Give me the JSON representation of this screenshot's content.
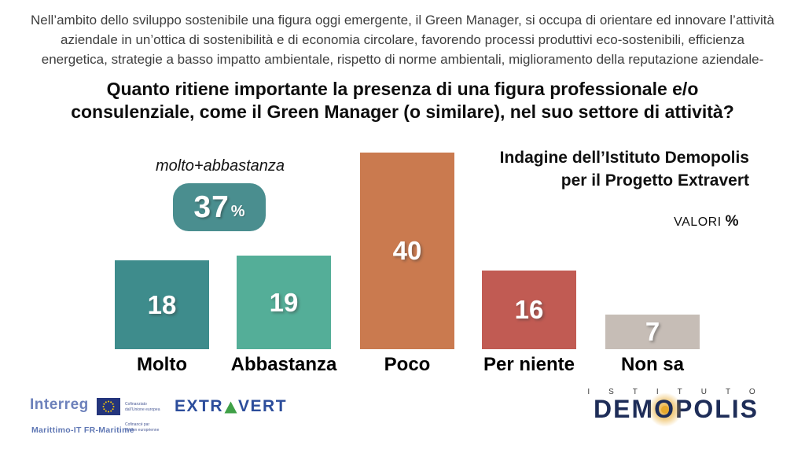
{
  "intro": {
    "lines": [
      "Nell’ambito dello sviluppo sostenibile una figura oggi emergente, il Green Manager, si occupa di orientare ed innovare l’attività",
      "aziendale in un’ottica di sostenibilità e di economia circolare, favorendo processi produttivi eco-sostenibili, efficienza",
      "energetica, strategie a basso impatto ambientale, rispetto di norme ambientali, miglioramento della reputazione aziendale-"
    ]
  },
  "title": {
    "lines": [
      "Quanto ritiene importante la presenza di una figura professionale e/o",
      "consulenziale, come il Green Manager (o similare), nel suo settore di attività?"
    ]
  },
  "annotation": {
    "label": "molto+abbastanza",
    "value": "37",
    "percent": "%",
    "badge_color": "#4a8e8f"
  },
  "source": {
    "lines": [
      "Indagine dell’Istituto Demopolis",
      "per il Progetto Extravert"
    ]
  },
  "values_note": {
    "label": "VALORI ",
    "percent": "%"
  },
  "chart_data": {
    "type": "bar",
    "title": "Quanto ritiene importante la presenza di una figura professionale e/o consulenziale, come il Green Manager (o similare), nel suo settore di attività?",
    "categories": [
      "Molto",
      "Abbastanza",
      "Poco",
      "Per niente",
      "Non sa"
    ],
    "values": [
      18,
      19,
      40,
      16,
      7
    ],
    "colors": [
      "#3e8c8c",
      "#54ae98",
      "#ca7a4f",
      "#c15b53",
      "#c6bdb6"
    ],
    "unit": "percent",
    "ylim": [
      0,
      40
    ],
    "grid": false,
    "data_labels": true,
    "annotation": {
      "label": "molto+abbastanza",
      "value": 37,
      "unit": "%"
    },
    "note": "VALORI %",
    "source": "Indagine dell’Istituto Demopolis per il Progetto Extravert"
  },
  "footer": {
    "interreg": {
      "name": "Interreg",
      "program": "Marittimo-IT FR-Maritime",
      "cofunding_it": "Cofinanziato\ndall’Unione europea",
      "cofunding_fr": "Cofinancé par\nl’Union européenne"
    },
    "extravert": {
      "pre": "EXTR",
      "post": "VERT",
      "triangle_color": "#3fa047"
    },
    "demopolis": {
      "istituto": "ISTITUTO",
      "dem": "DEM",
      "o": "O",
      "polis": "POLIS"
    }
  }
}
